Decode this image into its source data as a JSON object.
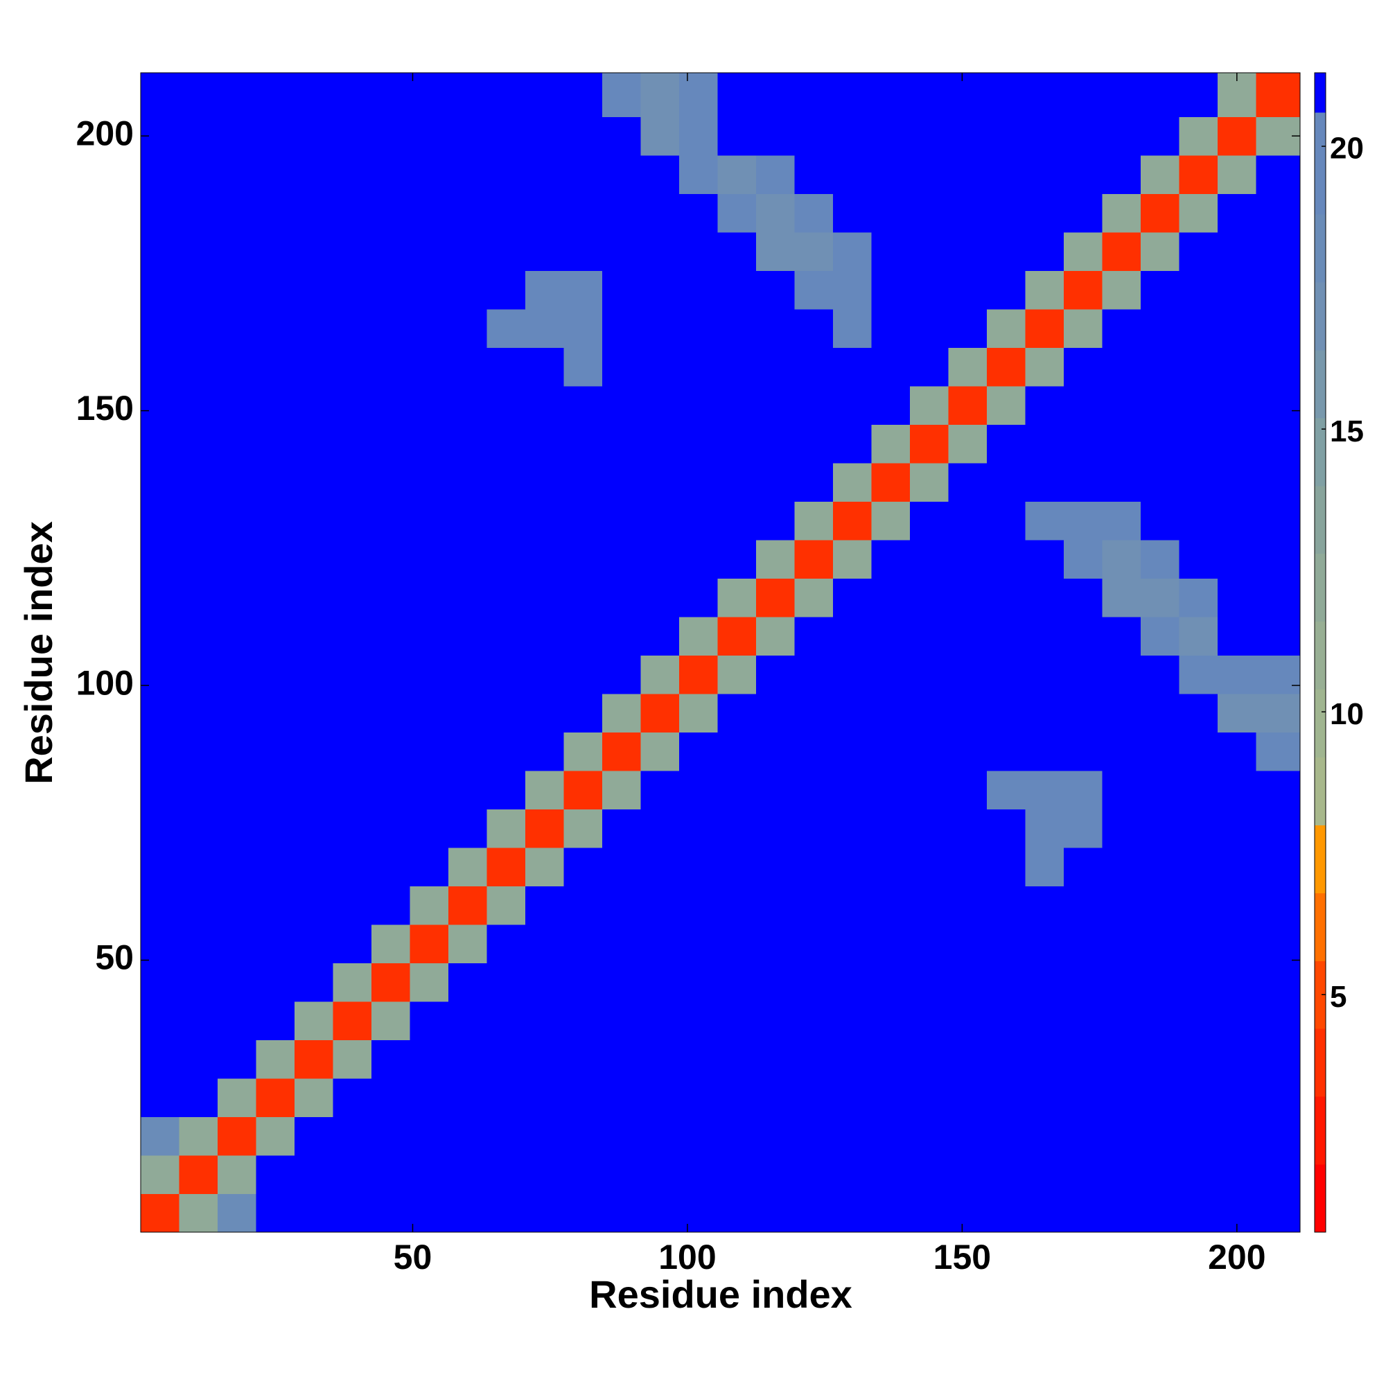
{
  "chart_data": {
    "type": "heatmap",
    "x_label": "Residue index",
    "y_label": "Residue index",
    "xlim": [
      0.5,
      211.5
    ],
    "ylim": [
      0.5,
      211.5
    ],
    "xticks": [
      50,
      100,
      150,
      200
    ],
    "yticks": [
      50,
      100,
      150,
      200
    ],
    "x_edges": [
      0.5,
      7.5,
      14.5,
      21.5,
      28.5,
      35.5,
      42.5,
      49.5,
      56.5,
      63.5,
      70.5,
      77.5,
      84.5,
      91.5,
      98.5,
      105.5,
      112.5,
      119.5,
      126.5,
      133.5,
      140.5,
      147.5,
      154.5,
      161.5,
      168.5,
      175.5,
      182.5,
      189.5,
      196.5,
      203.5,
      211.5
    ],
    "y_edges": [
      0.5,
      7.5,
      14.5,
      21.5,
      28.5,
      35.5,
      42.5,
      49.5,
      56.5,
      63.5,
      70.5,
      77.5,
      84.5,
      91.5,
      98.5,
      105.5,
      112.5,
      119.5,
      126.5,
      133.5,
      140.5,
      147.5,
      154.5,
      161.5,
      168.5,
      175.5,
      182.5,
      189.5,
      196.5,
      203.5,
      211.5
    ],
    "levels": [
      0.8,
      2,
      3.2,
      4.4,
      5.6,
      6.8,
      8,
      9.2,
      10.4,
      11.6,
      12.8,
      14,
      15.2,
      16.4,
      17.6,
      18.8,
      20.6,
      21.3
    ],
    "colors": [
      "#ff0000",
      "#ff1800",
      "#ff3000",
      "#ff4800",
      "#ff7000",
      "#ff9800",
      "#a8b88c",
      "#a0b590",
      "#98af94",
      "#90aa98",
      "#88a49c",
      "#80a0a4",
      "#7898ac",
      "#7090b4",
      "#6a8cb8",
      "#6688bc",
      "#0000ff"
    ],
    "colorbar_ticks": [
      5,
      10,
      15,
      20
    ],
    "z": [
      [
        4,
        12,
        18,
        21,
        21,
        21,
        21,
        21,
        21,
        21,
        21,
        21,
        21,
        21,
        21,
        21,
        21,
        21,
        21,
        21,
        21,
        21,
        21,
        21,
        21,
        21,
        21,
        21,
        21,
        21
      ],
      [
        12,
        4,
        12,
        21,
        21,
        21,
        21,
        21,
        21,
        21,
        21,
        21,
        21,
        21,
        21,
        21,
        21,
        21,
        21,
        21,
        21,
        21,
        21,
        21,
        21,
        21,
        21,
        21,
        21,
        21
      ],
      [
        18,
        12,
        4,
        12,
        21,
        21,
        21,
        21,
        21,
        21,
        21,
        21,
        21,
        21,
        21,
        21,
        21,
        21,
        21,
        21,
        21,
        21,
        21,
        21,
        21,
        21,
        21,
        21,
        21,
        21
      ],
      [
        21,
        21,
        12,
        4,
        12,
        21,
        21,
        21,
        21,
        21,
        21,
        21,
        21,
        21,
        21,
        21,
        21,
        21,
        21,
        21,
        21,
        21,
        21,
        21,
        21,
        21,
        21,
        21,
        21,
        21
      ],
      [
        21,
        21,
        21,
        12,
        4,
        12,
        21,
        21,
        21,
        21,
        21,
        21,
        21,
        21,
        21,
        21,
        21,
        21,
        21,
        21,
        21,
        21,
        21,
        21,
        21,
        21,
        21,
        21,
        21,
        21
      ],
      [
        21,
        21,
        21,
        21,
        12,
        4,
        12,
        21,
        21,
        21,
        21,
        21,
        21,
        21,
        21,
        21,
        21,
        21,
        21,
        21,
        21,
        21,
        21,
        21,
        21,
        21,
        21,
        21,
        21,
        21
      ],
      [
        21,
        21,
        21,
        21,
        21,
        12,
        4,
        12,
        21,
        21,
        21,
        21,
        21,
        21,
        21,
        21,
        21,
        21,
        21,
        21,
        21,
        21,
        21,
        21,
        21,
        21,
        21,
        21,
        21,
        21
      ],
      [
        21,
        21,
        21,
        21,
        21,
        21,
        12,
        4,
        12,
        21,
        21,
        21,
        21,
        21,
        21,
        21,
        21,
        21,
        21,
        21,
        21,
        21,
        21,
        21,
        21,
        21,
        21,
        21,
        21,
        21
      ],
      [
        21,
        21,
        21,
        21,
        21,
        21,
        21,
        12,
        4,
        12,
        21,
        21,
        21,
        21,
        21,
        21,
        21,
        21,
        21,
        21,
        21,
        21,
        21,
        21,
        21,
        21,
        21,
        21,
        21,
        21
      ],
      [
        21,
        21,
        21,
        21,
        21,
        21,
        21,
        21,
        12,
        4,
        12,
        21,
        21,
        21,
        21,
        21,
        21,
        21,
        21,
        21,
        21,
        21,
        21,
        19,
        21,
        21,
        21,
        21,
        21,
        21
      ],
      [
        21,
        21,
        21,
        21,
        21,
        21,
        21,
        21,
        21,
        12,
        4,
        12,
        21,
        21,
        21,
        21,
        21,
        21,
        21,
        21,
        21,
        21,
        21,
        19,
        19,
        21,
        21,
        21,
        21,
        21
      ],
      [
        21,
        21,
        21,
        21,
        21,
        21,
        21,
        21,
        21,
        21,
        12,
        4,
        12,
        21,
        21,
        21,
        21,
        21,
        21,
        21,
        21,
        21,
        19,
        19,
        19,
        21,
        21,
        21,
        21,
        21
      ],
      [
        21,
        21,
        21,
        21,
        21,
        21,
        21,
        21,
        21,
        21,
        21,
        12,
        4,
        12,
        21,
        21,
        21,
        21,
        21,
        21,
        21,
        21,
        21,
        21,
        21,
        21,
        21,
        21,
        21,
        19
      ],
      [
        21,
        21,
        21,
        21,
        21,
        21,
        21,
        21,
        21,
        21,
        21,
        21,
        12,
        4,
        12,
        21,
        21,
        21,
        21,
        21,
        21,
        21,
        21,
        21,
        21,
        21,
        21,
        21,
        17,
        17
      ],
      [
        21,
        21,
        21,
        21,
        21,
        21,
        21,
        21,
        21,
        21,
        21,
        21,
        21,
        12,
        4,
        12,
        21,
        21,
        21,
        21,
        21,
        21,
        21,
        21,
        21,
        21,
        21,
        19,
        19,
        19
      ],
      [
        21,
        21,
        21,
        21,
        21,
        21,
        21,
        21,
        21,
        21,
        21,
        21,
        21,
        21,
        12,
        4,
        12,
        21,
        21,
        21,
        21,
        21,
        21,
        21,
        21,
        21,
        19,
        17,
        21,
        21
      ],
      [
        21,
        21,
        21,
        21,
        21,
        21,
        21,
        21,
        21,
        21,
        21,
        21,
        21,
        21,
        21,
        12,
        4,
        12,
        21,
        21,
        21,
        21,
        21,
        21,
        21,
        17,
        17,
        19,
        21,
        21
      ],
      [
        21,
        21,
        21,
        21,
        21,
        21,
        21,
        21,
        21,
        21,
        21,
        21,
        21,
        21,
        21,
        21,
        12,
        4,
        12,
        21,
        21,
        21,
        21,
        21,
        19,
        17,
        19,
        21,
        21,
        21
      ],
      [
        21,
        21,
        21,
        21,
        21,
        21,
        21,
        21,
        21,
        21,
        21,
        21,
        21,
        21,
        21,
        21,
        21,
        12,
        4,
        12,
        21,
        21,
        21,
        19,
        19,
        19,
        21,
        21,
        21,
        21
      ],
      [
        21,
        21,
        21,
        21,
        21,
        21,
        21,
        21,
        21,
        21,
        21,
        21,
        21,
        21,
        21,
        21,
        21,
        21,
        12,
        4,
        12,
        21,
        21,
        21,
        21,
        21,
        21,
        21,
        21,
        21
      ],
      [
        21,
        21,
        21,
        21,
        21,
        21,
        21,
        21,
        21,
        21,
        21,
        21,
        21,
        21,
        21,
        21,
        21,
        21,
        21,
        12,
        4,
        12,
        21,
        21,
        21,
        21,
        21,
        21,
        21,
        21
      ],
      [
        21,
        21,
        21,
        21,
        21,
        21,
        21,
        21,
        21,
        21,
        21,
        21,
        21,
        21,
        21,
        21,
        21,
        21,
        21,
        21,
        12,
        4,
        12,
        21,
        21,
        21,
        21,
        21,
        21,
        21
      ],
      [
        21,
        21,
        21,
        21,
        21,
        21,
        21,
        21,
        21,
        21,
        21,
        19,
        21,
        21,
        21,
        21,
        21,
        21,
        21,
        21,
        21,
        12,
        4,
        12,
        21,
        21,
        21,
        21,
        21,
        21
      ],
      [
        21,
        21,
        21,
        21,
        21,
        21,
        21,
        21,
        21,
        19,
        19,
        19,
        21,
        21,
        21,
        21,
        21,
        21,
        19,
        21,
        21,
        21,
        12,
        4,
        12,
        21,
        21,
        21,
        21,
        21
      ],
      [
        21,
        21,
        21,
        21,
        21,
        21,
        21,
        21,
        21,
        21,
        19,
        19,
        21,
        21,
        21,
        21,
        21,
        19,
        19,
        21,
        21,
        21,
        21,
        12,
        4,
        12,
        21,
        21,
        21,
        21
      ],
      [
        21,
        21,
        21,
        21,
        21,
        21,
        21,
        21,
        21,
        21,
        21,
        21,
        21,
        21,
        21,
        21,
        17,
        17,
        19,
        21,
        21,
        21,
        21,
        21,
        12,
        4,
        12,
        21,
        21,
        21
      ],
      [
        21,
        21,
        21,
        21,
        21,
        21,
        21,
        21,
        21,
        21,
        21,
        21,
        21,
        21,
        21,
        19,
        17,
        19,
        21,
        21,
        21,
        21,
        21,
        21,
        21,
        12,
        4,
        12,
        21,
        21
      ],
      [
        21,
        21,
        21,
        21,
        21,
        21,
        21,
        21,
        21,
        21,
        21,
        21,
        21,
        21,
        19,
        17,
        19,
        21,
        21,
        21,
        21,
        21,
        21,
        21,
        21,
        21,
        12,
        4,
        12,
        21
      ],
      [
        21,
        21,
        21,
        21,
        21,
        21,
        21,
        21,
        21,
        21,
        21,
        21,
        21,
        17,
        19,
        21,
        21,
        21,
        21,
        21,
        21,
        21,
        21,
        21,
        21,
        21,
        21,
        12,
        4,
        12
      ],
      [
        21,
        21,
        21,
        21,
        21,
        21,
        21,
        21,
        21,
        21,
        21,
        21,
        19,
        17,
        19,
        21,
        21,
        21,
        21,
        21,
        21,
        21,
        21,
        21,
        21,
        21,
        21,
        21,
        12,
        4
      ]
    ]
  }
}
